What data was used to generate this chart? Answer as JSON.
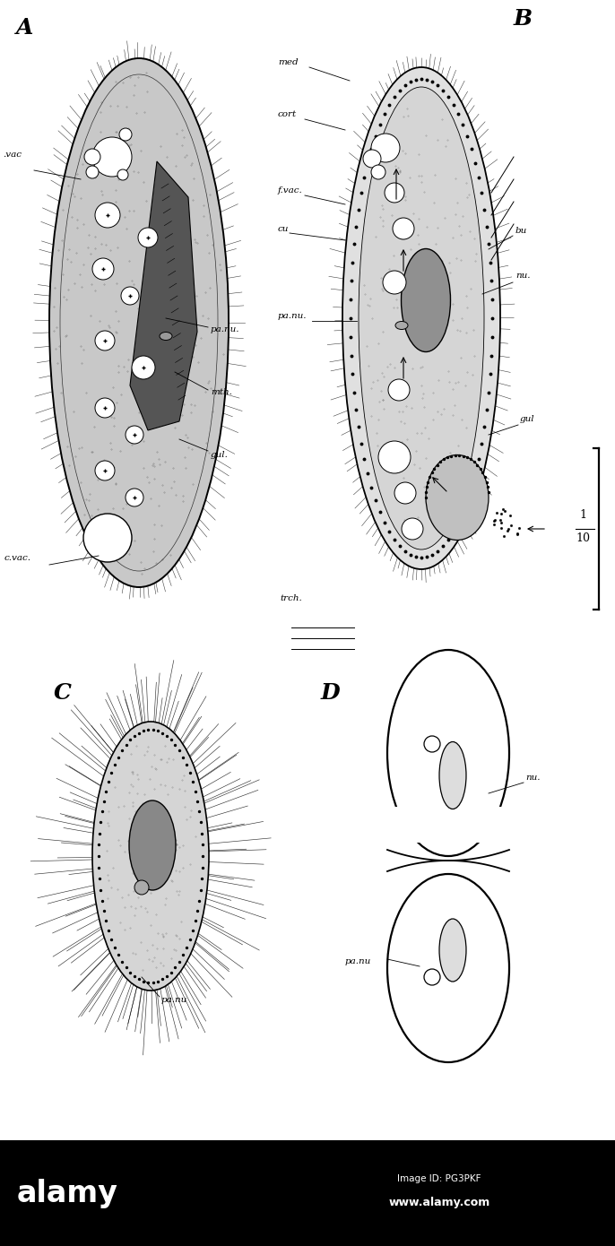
{
  "bg_color": "#ffffff",
  "fig_width": 6.86,
  "fig_height": 13.9,
  "dpi": 100,
  "label_A": "A",
  "label_B": "B",
  "label_C": "C",
  "label_D": "D",
  "ann_A_vac": ".vac",
  "ann_A_cvac": "c.vac.",
  "ann_A_gul": "gul.",
  "ann_A_panu": "pa.nu.",
  "ann_A_mth": "mth.",
  "ann_B_med": "med",
  "ann_B_cort": "cort",
  "ann_B_fvac": "f.vac.",
  "ann_B_cu": "cu",
  "ann_B_panu": "pa.nu.",
  "ann_B_nu": "nu.",
  "ann_B_bu": "bu",
  "ann_B_gul": "gul",
  "ann_B_trch": "trch.",
  "ann_B_scale1": "1",
  "ann_B_scale2": "10",
  "ann_C_panu": "pa.nu",
  "ann_D_nu": "nu.",
  "ann_D_panu": "pa.nu",
  "alamy_text": "alamy",
  "alamy_url": "www.alamy.com",
  "image_id": "Image ID: PG3PKF"
}
